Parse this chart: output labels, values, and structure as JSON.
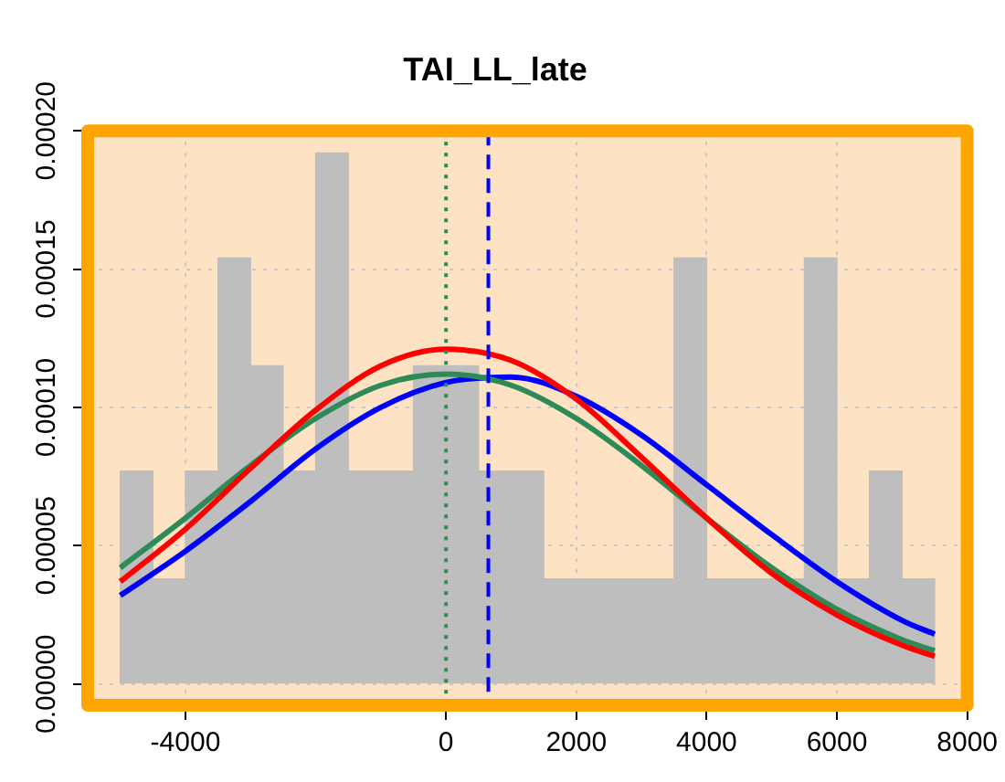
{
  "chart_data": {
    "type": "histogram",
    "title": "TAI_LL_late",
    "bins": [
      -5000,
      -4500,
      -4000,
      -3500,
      -3000,
      -2500,
      -2000,
      -1500,
      -1000,
      -500,
      0,
      500,
      1000,
      1500,
      2000,
      2500,
      3000,
      3500,
      4000,
      4500,
      5000,
      5500,
      6000,
      6500,
      7000,
      7500
    ],
    "values": [
      7.7e-05,
      3.8e-05,
      7.7e-05,
      0.000154,
      0.000115,
      7.7e-05,
      0.000192,
      7.7e-05,
      7.7e-05,
      0.000115,
      0.000115,
      7.7e-05,
      7.7e-05,
      3.8e-05,
      3.8e-05,
      3.8e-05,
      3.8e-05,
      0.000154,
      3.8e-05,
      3.8e-05,
      3.8e-05,
      0.000154,
      3.8e-05,
      7.7e-05,
      3.8e-05
    ],
    "color": "#bebebe",
    "series": [
      {
        "type": "line",
        "color": "#ff0000",
        "x": [
          -5000,
          -4000,
          -3000,
          -2000,
          -1000,
          0,
          1000,
          2000,
          3000,
          4000,
          5000,
          6000,
          7000,
          7500
        ],
        "values": [
          3.7e-05,
          5.6e-05,
          7.8e-05,
          9.9e-05,
          0.000115,
          0.000121,
          0.000117,
          0.000103,
          8.2e-05,
          6e-05,
          4e-05,
          2.5e-05,
          1.4e-05,
          1e-05
        ]
      },
      {
        "type": "line",
        "color": "#2e8b57",
        "x": [
          -5000,
          -4000,
          -3000,
          -2000,
          -1000,
          0,
          1000,
          2000,
          3000,
          4000,
          5000,
          6000,
          7000,
          7500
        ],
        "values": [
          4.2e-05,
          6e-05,
          7.9e-05,
          9.6e-05,
          0.000108,
          0.000112,
          0.000108,
          9.6e-05,
          7.9e-05,
          6e-05,
          4.2e-05,
          2.7e-05,
          1.6e-05,
          1.2e-05
        ]
      },
      {
        "type": "line",
        "color": "#0000ff",
        "x": [
          -5000,
          -4000,
          -3000,
          -2000,
          -1000,
          0,
          1000,
          2000,
          3000,
          4000,
          5000,
          6000,
          7000,
          7500
        ],
        "values": [
          3.2e-05,
          4.8e-05,
          6.6e-05,
          8.5e-05,
          0.0001,
          0.000109,
          0.000111,
          0.000104,
          9e-05,
          7.2e-05,
          5.4e-05,
          3.7e-05,
          2.3e-05,
          1.8e-05
        ]
      }
    ],
    "ref_lines": [
      {
        "axis": "x",
        "value": 0,
        "color": "#2e8b57",
        "line_style": "dotted"
      },
      {
        "axis": "x",
        "value": 650,
        "color": "#0000ff",
        "line_style": "dashed"
      }
    ],
    "xlim": [
      -5500,
      8000
    ],
    "xticks": [
      -4000,
      0,
      2000,
      4000,
      6000,
      8000
    ],
    "ylim": [
      -7.7e-06,
      0.0002
    ],
    "yticks": [
      {
        "value": 0,
        "label": "0.00000"
      },
      {
        "value": 5e-05,
        "label": "0.00005"
      },
      {
        "value": 0.0001,
        "label": "0.00010"
      },
      {
        "value": 0.00015,
        "label": "0.00015"
      },
      {
        "value": 0.0002,
        "label": "0.00020"
      }
    ],
    "grid": true,
    "legend": false
  }
}
